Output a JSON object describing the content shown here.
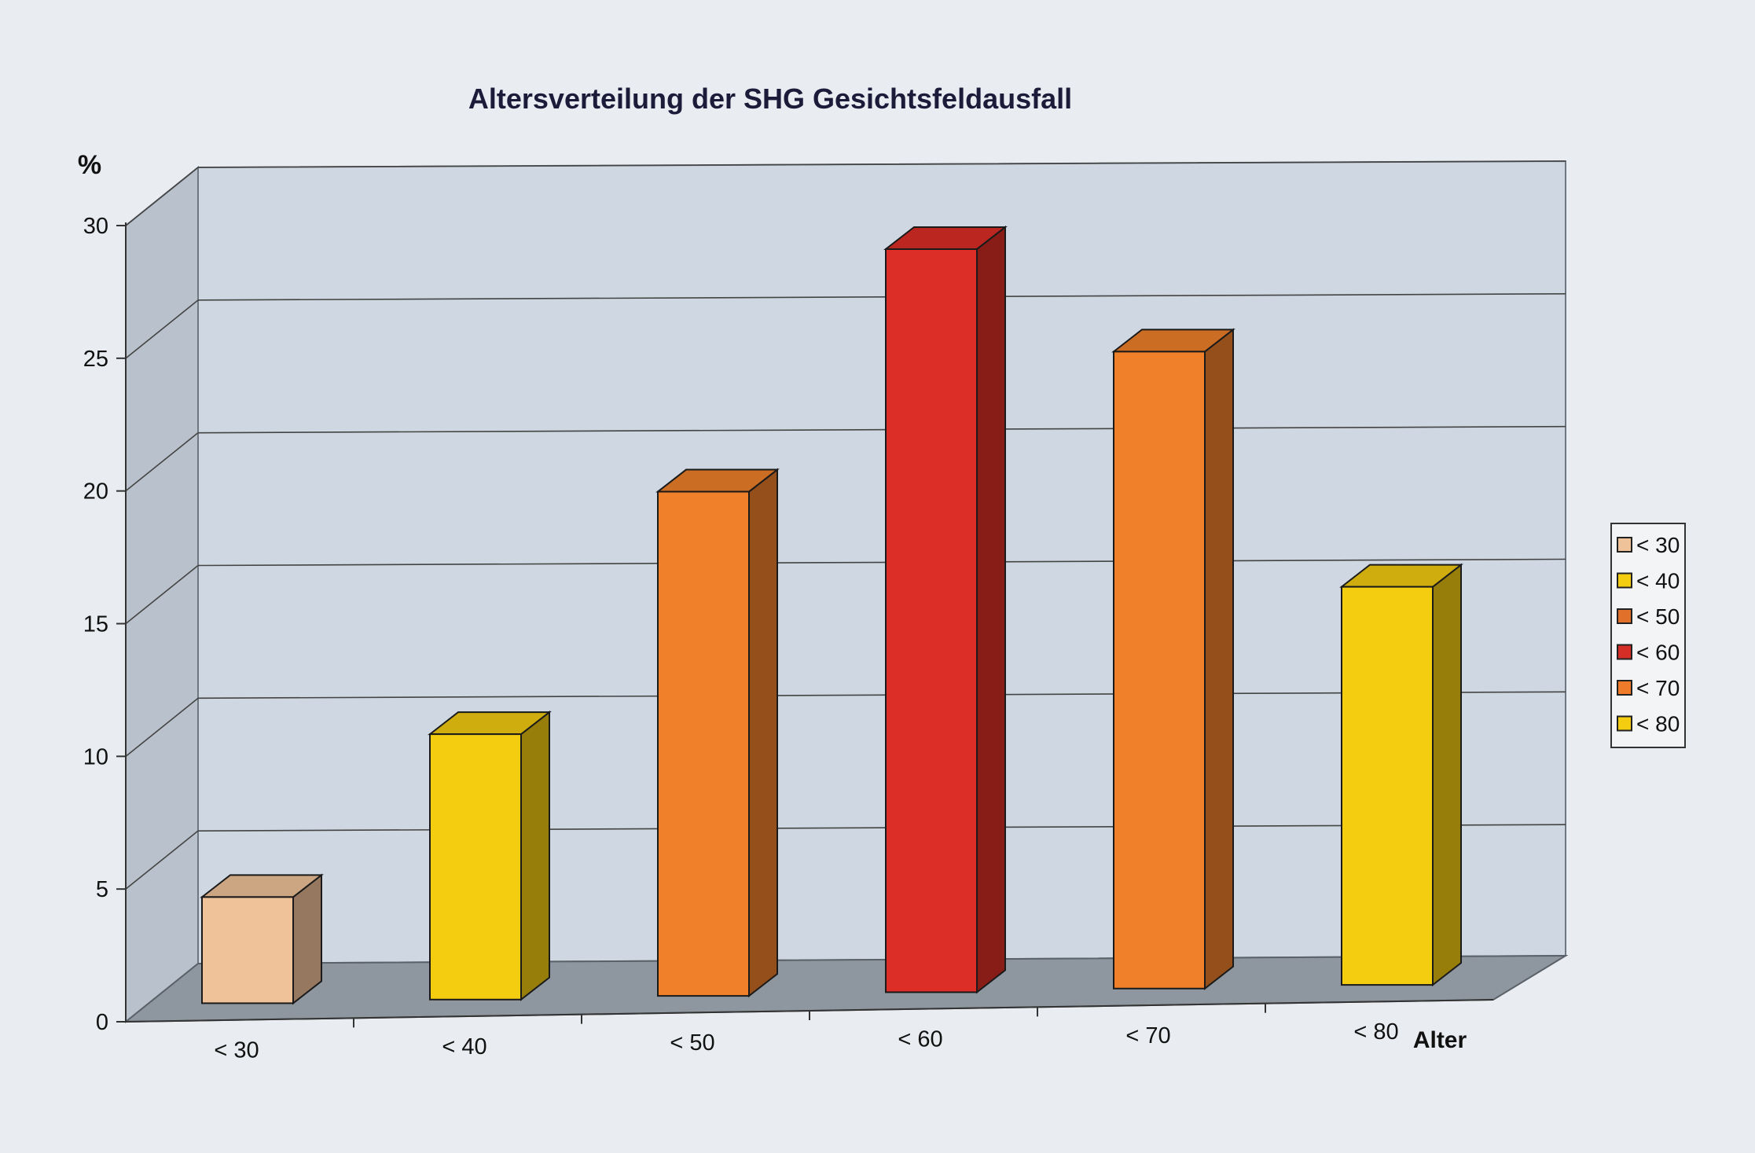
{
  "chart_data": {
    "type": "bar",
    "title": "Altersverteilung der SHG Gesichtsfeldausfall",
    "ylabel": "%",
    "xlabel": "Alter",
    "ylim": [
      0,
      30
    ],
    "yticks": [
      "0",
      "5",
      "10",
      "15",
      "20",
      "25",
      "30"
    ],
    "categories": [
      "< 30",
      "< 40",
      "< 50",
      "< 60",
      "< 70",
      "< 80"
    ],
    "values": [
      4,
      10,
      19,
      28,
      24,
      15
    ],
    "colors": [
      "#f0c29a",
      "#f4cc10",
      "#f0802a",
      "#dc2e26",
      "#f0802a",
      "#f4cc10"
    ],
    "legend": {
      "position": "right",
      "entries": [
        {
          "label": "< 30",
          "color": "#f0c29a"
        },
        {
          "label": "< 40",
          "color": "#f4cc10"
        },
        {
          "label": "< 50",
          "color": "#e0702a"
        },
        {
          "label": "< 60",
          "color": "#d42e26"
        },
        {
          "label": "< 70",
          "color": "#ee7a2a"
        },
        {
          "label": "< 80",
          "color": "#f4cc10"
        }
      ]
    },
    "grid": true,
    "style": "3d"
  }
}
